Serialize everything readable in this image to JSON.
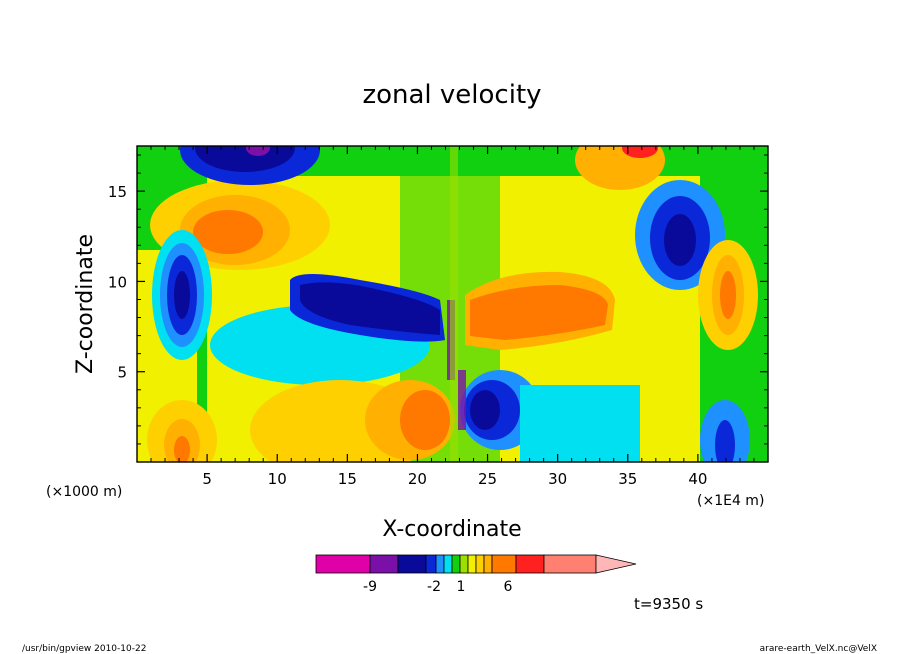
{
  "chart_data": {
    "type": "heatmap",
    "title": "zonal velocity",
    "xlabel": "X-coordinate",
    "ylabel": "Z-coordinate",
    "x_unit_left": "(×1000 m)",
    "x_unit_right": "(×1E4 m)",
    "x_ticks": [
      "5",
      "10",
      "15",
      "20",
      "25",
      "30",
      "35",
      "40"
    ],
    "y_ticks": [
      "5",
      "10",
      "15"
    ],
    "xlim": [
      0,
      45
    ],
    "ylim": [
      0,
      17.5
    ],
    "colorbar": {
      "tick_labels": [
        "-9",
        "-2",
        "1",
        "6"
      ],
      "colors": [
        "#e000a8",
        "#7a10a8",
        "#0a0a9a",
        "#0a28d8",
        "#1e90ff",
        "#00e0f0",
        "#10d010",
        "#9ae000",
        "#f0f000",
        "#ffd000",
        "#ffb000",
        "#ff7800",
        "#ff2020",
        "#ff8070",
        "#ffb6b6"
      ]
    },
    "time_label": "t=9350 s"
  },
  "footer": {
    "left": "/usr/bin/gpview   2010-10-22",
    "right": "arare-earth_VelX.nc@VelX"
  }
}
